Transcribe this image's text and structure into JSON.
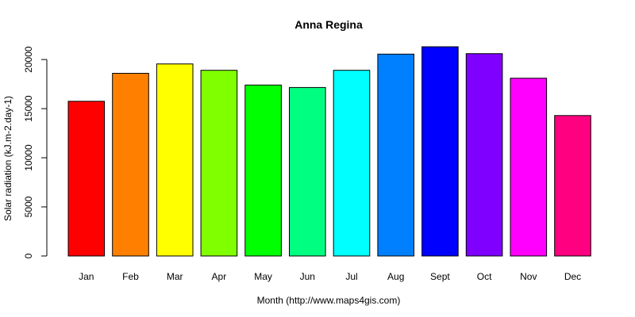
{
  "chart_data": {
    "type": "bar",
    "title": "Anna Regina",
    "xlabel": "Month (http://www.maps4gis.com)",
    "ylabel": "Solar radiation (kJ.m-2.day-1)",
    "categories": [
      "Jan",
      "Feb",
      "Mar",
      "Apr",
      "May",
      "Jun",
      "Jul",
      "Aug",
      "Sept",
      "Oct",
      "Nov",
      "Dec"
    ],
    "values": [
      15750,
      18600,
      19550,
      18900,
      17400,
      17150,
      18900,
      20550,
      21300,
      20600,
      18100,
      14300
    ],
    "colors": [
      "#FF0000",
      "#FF8000",
      "#FFFF00",
      "#80FF00",
      "#00FF00",
      "#00FF80",
      "#00FFFF",
      "#0080FF",
      "#0000FF",
      "#8000FF",
      "#FF00FF",
      "#FF0080"
    ],
    "ylim": [
      0,
      21300
    ],
    "yticks": [
      0,
      5000,
      10000,
      15000,
      20000
    ],
    "grid": false,
    "legend": "none"
  }
}
